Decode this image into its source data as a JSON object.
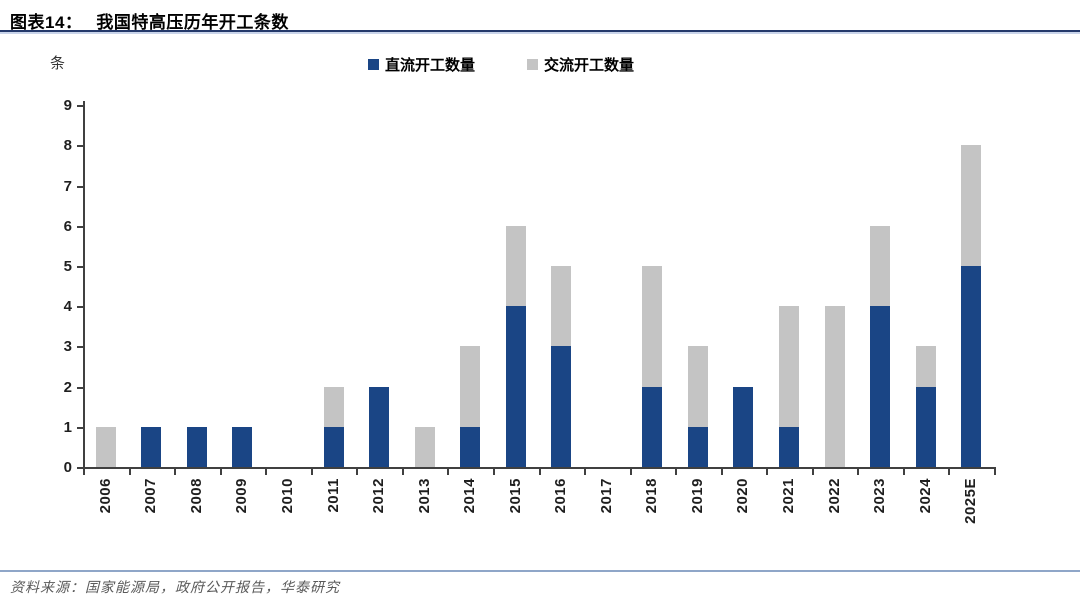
{
  "header": {
    "figure_label": "图表14：",
    "title": "我国特高压历年开工条数"
  },
  "chart_data": {
    "type": "bar",
    "stacked": true,
    "title": "我国特高压历年开工条数",
    "unit": "条",
    "categories": [
      "2006",
      "2007",
      "2008",
      "2009",
      "2010",
      "2011",
      "2012",
      "2013",
      "2014",
      "2015",
      "2016",
      "2017",
      "2018",
      "2019",
      "2020",
      "2021",
      "2022",
      "2023",
      "2024",
      "2025E"
    ],
    "series": [
      {
        "name": "直流开工数量",
        "color": "#1A4585",
        "values": [
          0,
          1,
          1,
          1,
          0,
          1,
          2,
          0,
          1,
          4,
          3,
          0,
          2,
          1,
          2,
          1,
          0,
          4,
          2,
          5
        ]
      },
      {
        "name": "交流开工数量",
        "color": "#C4C4C4",
        "values": [
          1,
          0,
          0,
          0,
          0,
          1,
          0,
          1,
          2,
          2,
          2,
          0,
          3,
          2,
          0,
          3,
          4,
          2,
          1,
          3
        ]
      }
    ],
    "ylim": [
      0,
      9
    ],
    "ytick_step": 1,
    "legend_position": "top",
    "grid": false,
    "axis_color": "#404040"
  },
  "footer": {
    "source": "资料来源：国家能源局，政府公开报告，华泰研究"
  }
}
